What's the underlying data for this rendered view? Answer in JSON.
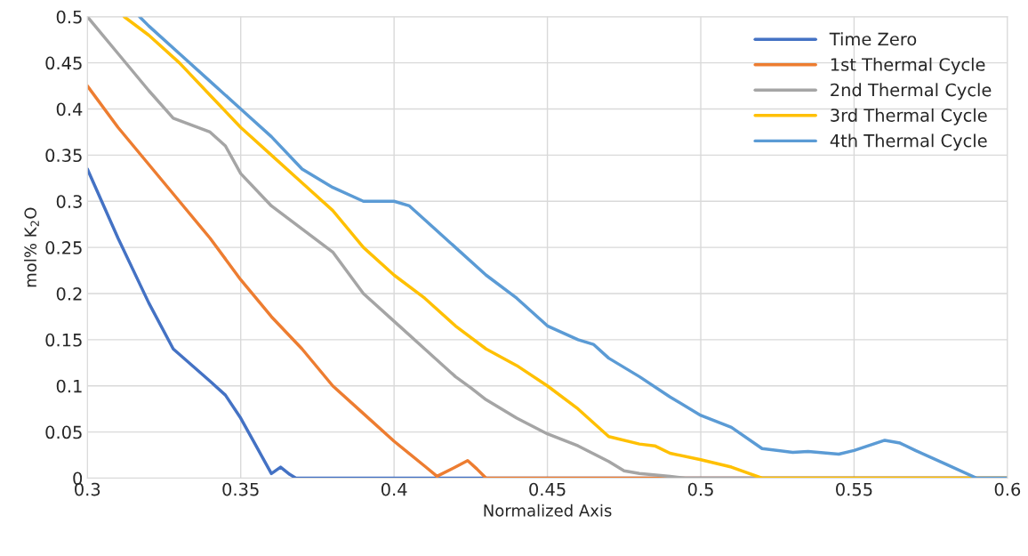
{
  "chart_data": {
    "type": "line",
    "xlabel": "Normalized Axis",
    "ylabel": "mol% K$_{2}$O",
    "xlim": [
      0.3,
      0.6
    ],
    "xticks": [
      0.3,
      0.35,
      0.4,
      0.45,
      0.5,
      0.55,
      0.6
    ],
    "ylim": [
      0,
      0.5
    ],
    "yticks": [
      0,
      0.05,
      0.1,
      0.15,
      0.2,
      0.25,
      0.3,
      0.35,
      0.4,
      0.45,
      0.5
    ],
    "grid": true,
    "legend": "top right",
    "marker": "none",
    "line_style": "solid",
    "series": [
      {
        "name": "Time Zero",
        "color": "#4472c4",
        "x": [
          0.3,
          0.31,
          0.32,
          0.328,
          0.34,
          0.345,
          0.35,
          0.355,
          0.36,
          0.363,
          0.366,
          0.368,
          0.6
        ],
        "values": [
          0.335,
          0.26,
          0.19,
          0.14,
          0.105,
          0.09,
          0.065,
          0.035,
          0.005,
          0.012,
          0.004,
          0,
          0
        ]
      },
      {
        "name": "1st Thermal Cycle",
        "color": "#ed7d31",
        "x": [
          0.3,
          0.31,
          0.32,
          0.33,
          0.34,
          0.35,
          0.36,
          0.37,
          0.38,
          0.39,
          0.4,
          0.41,
          0.414,
          0.42,
          0.424,
          0.427,
          0.43,
          0.6
        ],
        "values": [
          0.425,
          0.38,
          0.34,
          0.3,
          0.26,
          0.215,
          0.175,
          0.14,
          0.1,
          0.07,
          0.04,
          0.013,
          0.002,
          0.012,
          0.019,
          0.01,
          0,
          0
        ]
      },
      {
        "name": "2nd Thermal Cycle",
        "color": "#a5a5a5",
        "x": [
          0.3,
          0.31,
          0.32,
          0.328,
          0.34,
          0.345,
          0.35,
          0.36,
          0.37,
          0.38,
          0.39,
          0.4,
          0.41,
          0.42,
          0.425,
          0.43,
          0.44,
          0.45,
          0.46,
          0.47,
          0.475,
          0.48,
          0.49,
          0.495,
          0.6
        ],
        "values": [
          0.5,
          0.46,
          0.42,
          0.39,
          0.375,
          0.36,
          0.33,
          0.295,
          0.27,
          0.245,
          0.2,
          0.17,
          0.14,
          0.11,
          0.098,
          0.085,
          0.065,
          0.048,
          0.035,
          0.018,
          0.008,
          0.005,
          0.002,
          0,
          0
        ]
      },
      {
        "name": "3rd Thermal Cycle",
        "color": "#ffc000",
        "x": [
          0.312,
          0.32,
          0.33,
          0.34,
          0.35,
          0.36,
          0.37,
          0.38,
          0.39,
          0.4,
          0.41,
          0.42,
          0.43,
          0.44,
          0.45,
          0.46,
          0.47,
          0.48,
          0.485,
          0.49,
          0.5,
          0.51,
          0.52,
          0.6
        ],
        "values": [
          0.5,
          0.48,
          0.45,
          0.415,
          0.38,
          0.35,
          0.32,
          0.29,
          0.25,
          0.22,
          0.195,
          0.165,
          0.14,
          0.122,
          0.1,
          0.075,
          0.045,
          0.037,
          0.035,
          0.027,
          0.02,
          0.012,
          0,
          0
        ]
      },
      {
        "name": "4th Thermal Cycle",
        "color": "#5b9bd5",
        "x": [
          0.317,
          0.32,
          0.33,
          0.34,
          0.35,
          0.36,
          0.37,
          0.38,
          0.39,
          0.4,
          0.405,
          0.41,
          0.42,
          0.43,
          0.44,
          0.45,
          0.46,
          0.465,
          0.47,
          0.48,
          0.49,
          0.5,
          0.51,
          0.52,
          0.53,
          0.535,
          0.545,
          0.55,
          0.56,
          0.565,
          0.57,
          0.58,
          0.59,
          0.6
        ],
        "values": [
          0.5,
          0.49,
          0.46,
          0.43,
          0.4,
          0.37,
          0.335,
          0.315,
          0.3,
          0.3,
          0.295,
          0.28,
          0.25,
          0.22,
          0.195,
          0.165,
          0.15,
          0.145,
          0.13,
          0.11,
          0.088,
          0.068,
          0.055,
          0.032,
          0.028,
          0.029,
          0.026,
          0.03,
          0.041,
          0.038,
          0.03,
          0.015,
          0,
          0
        ]
      }
    ]
  }
}
